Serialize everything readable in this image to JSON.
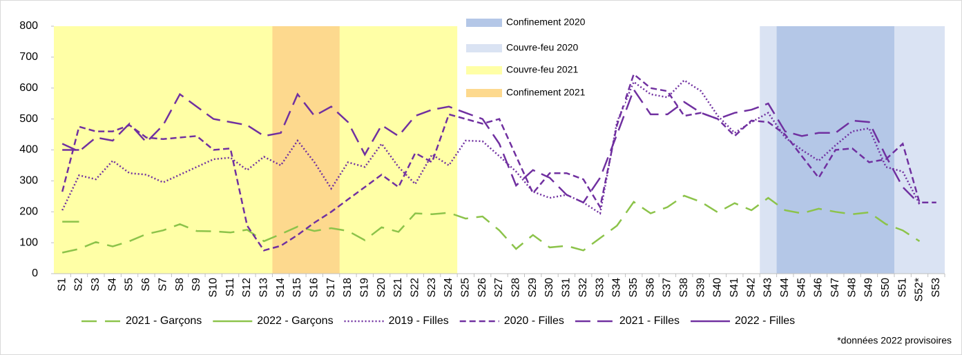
{
  "chart_data": {
    "type": "line",
    "categories": [
      "S1",
      "S2",
      "S3",
      "S4",
      "S5",
      "S6",
      "S7",
      "S8",
      "S9",
      "S10",
      "S11",
      "S12",
      "S13",
      "S14",
      "S15",
      "S16",
      "S17",
      "S18",
      "S19",
      "S20",
      "S21",
      "S22",
      "S23",
      "S24",
      "S25",
      "S26",
      "S27",
      "S28",
      "S29",
      "S30",
      "S31",
      "S32",
      "S33",
      "S34",
      "S35",
      "S36",
      "S37",
      "S38",
      "S39",
      "S40",
      "S41",
      "S42",
      "S43",
      "S44",
      "S45",
      "S46",
      "S47",
      "S48",
      "S49",
      "S50",
      "S51",
      "S52*",
      "S53"
    ],
    "ylim": [
      0,
      800
    ],
    "yticks": [
      0,
      100,
      200,
      300,
      400,
      500,
      600,
      700,
      800
    ],
    "bands": [
      {
        "name": "Confinement 2020",
        "color": "#b4c7e7",
        "ranges": [
          {
            "from": "S12",
            "to": "S19",
            "ylim": [
              750,
              800
            ]
          },
          {
            "from": "S44",
            "to": "S50"
          }
        ]
      },
      {
        "name": "Couvre-feu 2020",
        "color": "#dae3f3",
        "ranges": [
          {
            "from": "S43",
            "to": "S53"
          }
        ]
      },
      {
        "name": "Couvre-feu 2021",
        "color": "#ffffa6",
        "ranges": [
          {
            "from": "S1",
            "to": "S24"
          }
        ]
      },
      {
        "name": "Confinement 2021",
        "color": "#fdd98e",
        "ranges": [
          {
            "from": "S14",
            "to": "S17"
          }
        ]
      }
    ],
    "series": [
      {
        "name": "2021 - Garçons",
        "color": "#8cc34a",
        "dash": "22 12",
        "values": [
          68,
          80,
          102,
          88,
          105,
          128,
          140,
          160,
          138,
          137,
          133,
          142,
          105,
          128,
          152,
          138,
          147,
          138,
          108,
          150,
          135,
          195,
          192,
          197,
          178,
          185,
          140,
          80,
          125,
          85,
          90,
          75,
          115,
          155,
          232,
          195,
          215,
          252,
          232,
          198,
          228,
          205,
          245,
          205,
          195,
          210,
          200,
          192,
          198,
          160,
          140,
          105,
          null
        ]
      },
      {
        "name": "2022 - Garçons",
        "color": "#8cc34a",
        "dash": "",
        "values": [
          168,
          168,
          null,
          null,
          null,
          null,
          null,
          null,
          null,
          null,
          null,
          null,
          null,
          null,
          null,
          null,
          null,
          null,
          null,
          null,
          null,
          null,
          null,
          null,
          null,
          null,
          null,
          null,
          null,
          null,
          null,
          null,
          null,
          null,
          null,
          null,
          null,
          null,
          null,
          null,
          null,
          null,
          null,
          null,
          null,
          null,
          null,
          null,
          null,
          null,
          null,
          null,
          null
        ]
      },
      {
        "name": "2019 - Filles",
        "color": "#7030a0",
        "dash": "2 3",
        "values": [
          205,
          318,
          305,
          365,
          325,
          320,
          295,
          320,
          345,
          370,
          375,
          335,
          378,
          350,
          430,
          360,
          275,
          360,
          345,
          420,
          345,
          290,
          385,
          350,
          430,
          428,
          380,
          330,
          265,
          245,
          255,
          230,
          195,
          490,
          620,
          580,
          570,
          625,
          590,
          510,
          455,
          490,
          520,
          440,
          400,
          365,
          415,
          460,
          470,
          345,
          330,
          225,
          null
        ]
      },
      {
        "name": "2020 - Filles",
        "color": "#7030a0",
        "dash": "9 5",
        "values": [
          265,
          475,
          460,
          460,
          480,
          440,
          435,
          440,
          445,
          400,
          405,
          155,
          75,
          90,
          125,
          165,
          200,
          240,
          280,
          320,
          280,
          390,
          360,
          515,
          500,
          485,
          500,
          380,
          260,
          325,
          325,
          305,
          215,
          480,
          645,
          600,
          590,
          510,
          520,
          500,
          445,
          495,
          490,
          450,
          380,
          310,
          400,
          405,
          360,
          370,
          420,
          230,
          230
        ]
      },
      {
        "name": "2021 - Filles",
        "color": "#7030a0",
        "dash": "22 10",
        "values": [
          420,
          395,
          440,
          430,
          485,
          425,
          480,
          580,
          540,
          500,
          490,
          480,
          445,
          455,
          580,
          510,
          540,
          490,
          385,
          480,
          445,
          510,
          530,
          540,
          520,
          500,
          420,
          285,
          335,
          310,
          255,
          230,
          310,
          450,
          595,
          515,
          515,
          555,
          520,
          500,
          520,
          530,
          550,
          460,
          445,
          455,
          455,
          495,
          490,
          380,
          280,
          225,
          null
        ]
      },
      {
        "name": "2022 - Filles",
        "color": "#7030a0",
        "dash": "",
        "values": [
          400,
          400,
          null,
          null,
          null,
          null,
          null,
          null,
          null,
          null,
          null,
          null,
          null,
          null,
          null,
          null,
          null,
          null,
          null,
          null,
          null,
          null,
          null,
          null,
          null,
          null,
          null,
          null,
          null,
          null,
          null,
          null,
          null,
          null,
          null,
          null,
          null,
          null,
          null,
          null,
          null,
          null,
          null,
          null,
          null,
          null,
          null,
          null,
          null,
          null,
          null,
          null,
          null
        ]
      }
    ],
    "footnote": "*données 2022 provisoires"
  }
}
